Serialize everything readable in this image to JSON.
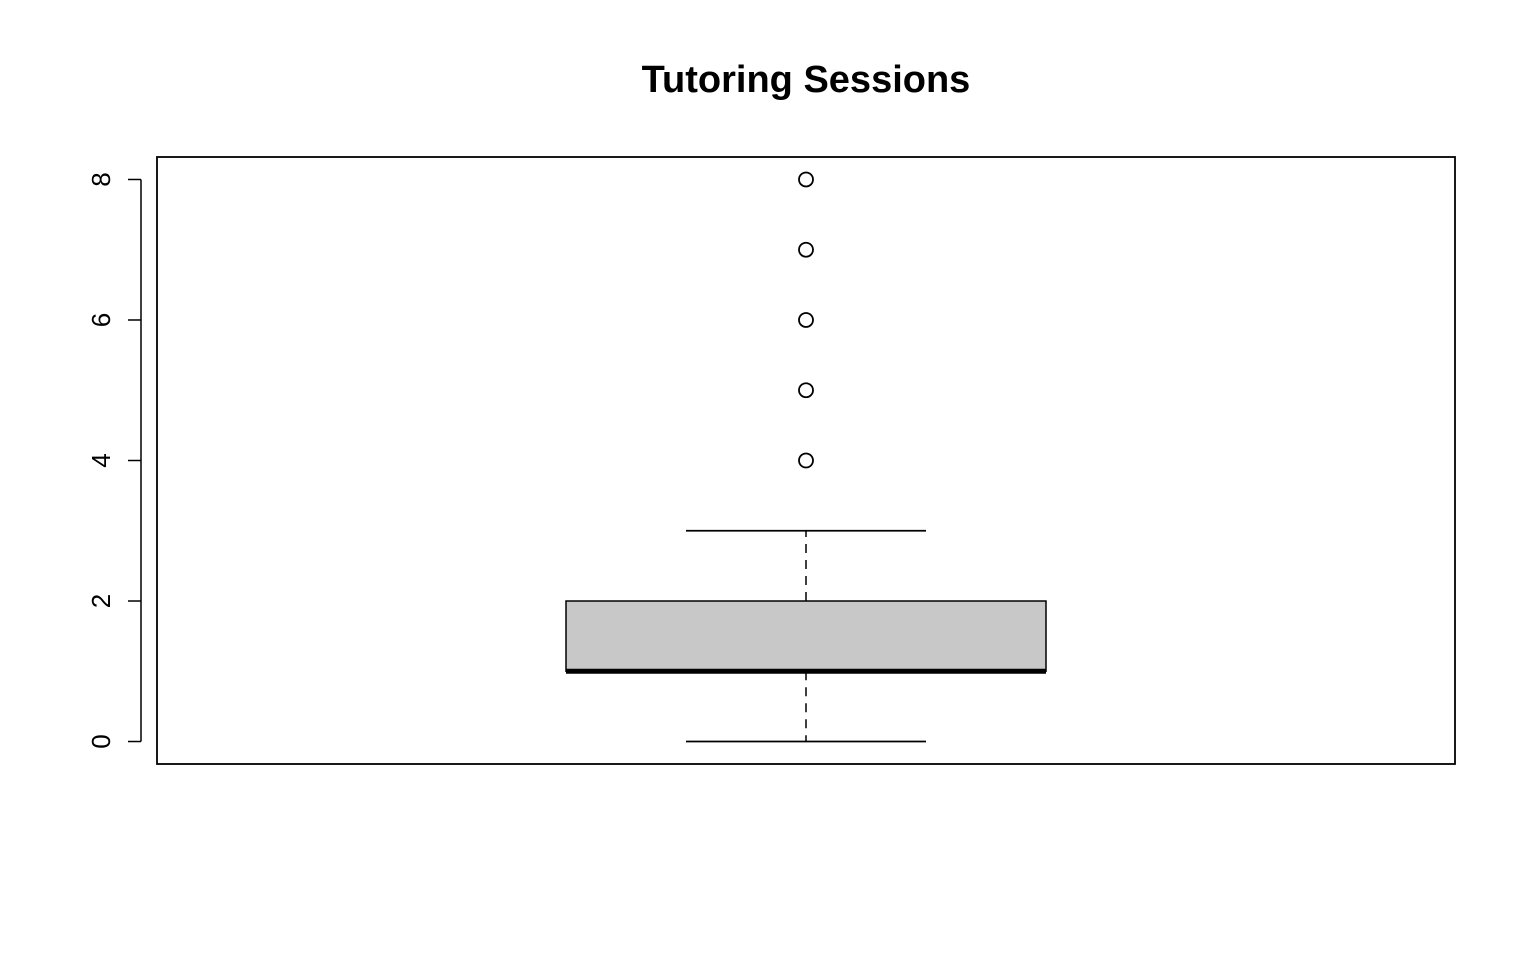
{
  "chart_data": {
    "type": "boxplot",
    "title": "Tutoring Sessions",
    "xlabel": "",
    "ylabel": "",
    "ylim": [
      -0.32,
      8.32
    ],
    "y_ticks": [
      0,
      2,
      4,
      6,
      8
    ],
    "grid": false,
    "box_color": "#c8c8c8",
    "stroke_color": "#000000",
    "boxes": [
      {
        "min": 0,
        "q1": 1,
        "median": 1,
        "q3": 2,
        "max": 3,
        "outliers": [
          4,
          5,
          6,
          7,
          8
        ]
      }
    ]
  }
}
